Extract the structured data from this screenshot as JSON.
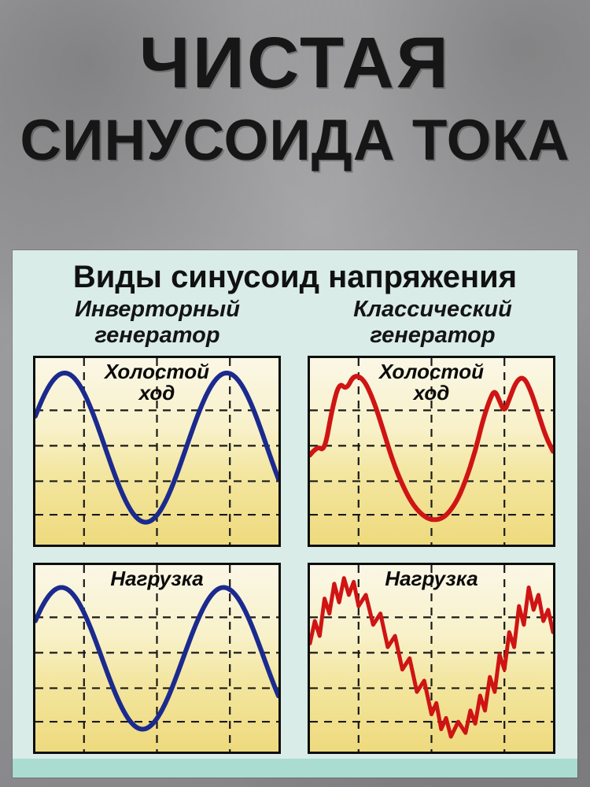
{
  "header": {
    "line1": "ЧИСТАЯ",
    "line2": "СИНУСОИДА ТОКА"
  },
  "panel": {
    "title": "Виды синусоид напряжения",
    "columns": [
      {
        "label": "Инверторный генератор"
      },
      {
        "label": "Классический генератор"
      }
    ]
  },
  "colors": {
    "inverter_wave": "#1b2a8e",
    "classic_wave": "#cf1414",
    "chart_bg_top": "#faf7e6",
    "chart_bg_bottom": "#eeda7e",
    "panel_bg": "#d9ece7",
    "panel_footer": "#abdcd2",
    "grid_line": "#1a1a1a"
  },
  "chart_data": [
    {
      "id": "inverter-idle",
      "type": "line",
      "title": "Холостой ход",
      "column": "Инверторный генератор",
      "grid": {
        "vertical_percent": [
          20,
          50,
          80
        ],
        "horizontal_percent": [
          28,
          47,
          66,
          84
        ],
        "style": "dashed"
      },
      "series": [
        {
          "name": "напряжение",
          "color": "#1b2a8e",
          "stroke_width": 6,
          "waveform": "sine",
          "cycles": 1.5,
          "phase_deg": 25,
          "amplitude": 40,
          "midline": 48
        }
      ]
    },
    {
      "id": "classic-idle",
      "type": "line",
      "title": "Холостой ход",
      "column": "Классический генератор",
      "grid": {
        "vertical_percent": [
          20,
          50,
          80
        ],
        "horizontal_percent": [
          28,
          47,
          66,
          84
        ],
        "style": "dashed"
      },
      "series": [
        {
          "name": "напряжение",
          "color": "#cf1414",
          "stroke_width": 6,
          "smooth": true,
          "points": [
            [
              0,
              52
            ],
            [
              3,
              47
            ],
            [
              6,
              50
            ],
            [
              9,
              28
            ],
            [
              12,
              13
            ],
            [
              15,
              17
            ],
            [
              18,
              9
            ],
            [
              22,
              11
            ],
            [
              26,
              22
            ],
            [
              30,
              38
            ],
            [
              34,
              55
            ],
            [
              38,
              68
            ],
            [
              42,
              78
            ],
            [
              46,
              84
            ],
            [
              50,
              87
            ],
            [
              55,
              86
            ],
            [
              60,
              78
            ],
            [
              64,
              66
            ],
            [
              68,
              50
            ],
            [
              71,
              34
            ],
            [
              74,
              22
            ],
            [
              76,
              17
            ],
            [
              78,
              23
            ],
            [
              80,
              29
            ],
            [
              82,
              22
            ],
            [
              85,
              12
            ],
            [
              88,
              10
            ],
            [
              91,
              18
            ],
            [
              94,
              30
            ],
            [
              97,
              42
            ],
            [
              100,
              50
            ]
          ]
        }
      ]
    },
    {
      "id": "inverter-load",
      "type": "line",
      "title": "Нагрузка",
      "column": "Инверторный генератор",
      "grid": {
        "vertical_percent": [
          20,
          50,
          80
        ],
        "horizontal_percent": [
          28,
          47,
          66,
          84
        ],
        "style": "dashed"
      },
      "series": [
        {
          "name": "напряжение",
          "color": "#1b2a8e",
          "stroke_width": 6,
          "waveform": "sine",
          "cycles": 1.5,
          "phase_deg": 32,
          "amplitude": 38,
          "midline": 50
        }
      ]
    },
    {
      "id": "classic-load",
      "type": "line",
      "title": "Нагрузка",
      "column": "Классический генератор",
      "grid": {
        "vertical_percent": [
          20,
          50,
          80
        ],
        "horizontal_percent": [
          28,
          47,
          66,
          84
        ],
        "style": "dashed"
      },
      "series": [
        {
          "name": "напряжение",
          "color": "#cf1414",
          "stroke_width": 5,
          "smooth": false,
          "points": [
            [
              0,
              42
            ],
            [
              2,
              30
            ],
            [
              4,
              38
            ],
            [
              6,
              18
            ],
            [
              8,
              26
            ],
            [
              10,
              10
            ],
            [
              12,
              20
            ],
            [
              14,
              7
            ],
            [
              16,
              16
            ],
            [
              18,
              9
            ],
            [
              20,
              22
            ],
            [
              23,
              16
            ],
            [
              26,
              32
            ],
            [
              29,
              26
            ],
            [
              32,
              44
            ],
            [
              35,
              38
            ],
            [
              38,
              56
            ],
            [
              41,
              50
            ],
            [
              44,
              68
            ],
            [
              47,
              62
            ],
            [
              50,
              80
            ],
            [
              52,
              74
            ],
            [
              54,
              88
            ],
            [
              56,
              82
            ],
            [
              58,
              92
            ],
            [
              61,
              84
            ],
            [
              64,
              90
            ],
            [
              66,
              78
            ],
            [
              68,
              85
            ],
            [
              70,
              70
            ],
            [
              72,
              78
            ],
            [
              74,
              60
            ],
            [
              76,
              68
            ],
            [
              78,
              48
            ],
            [
              80,
              56
            ],
            [
              82,
              36
            ],
            [
              84,
              44
            ],
            [
              86,
              22
            ],
            [
              88,
              32
            ],
            [
              90,
              12
            ],
            [
              92,
              24
            ],
            [
              94,
              16
            ],
            [
              96,
              30
            ],
            [
              98,
              24
            ],
            [
              100,
              36
            ]
          ]
        }
      ]
    }
  ]
}
